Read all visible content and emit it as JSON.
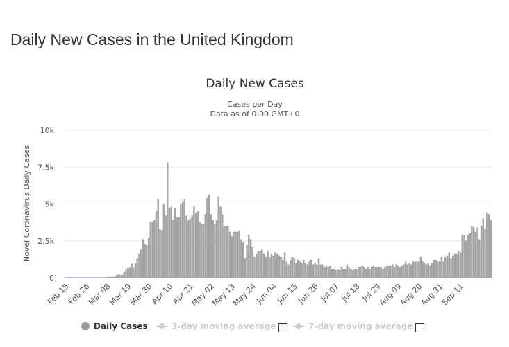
{
  "page": {
    "title": "Daily New Cases in the United Kingdom"
  },
  "colors": {
    "bar": "#a6a6a6",
    "bar_stroke": "#8a8a8a",
    "grid": "#e6e6e6",
    "axis_text": "#555555",
    "legend_hidden": "#cccccc"
  },
  "chart_data": {
    "type": "bar",
    "title": "Daily New Cases",
    "subtitle_line1": "Cases per Day",
    "subtitle_line2": "Data as of 0:00 GMT+0",
    "ylabel": "Novel Coronavirus Daily Cases",
    "xlabel": "",
    "ylim": [
      0,
      10000
    ],
    "y_ticks": [
      {
        "value": 0,
        "label": "0"
      },
      {
        "value": 2500,
        "label": "2.5k"
      },
      {
        "value": 5000,
        "label": "5k"
      },
      {
        "value": 7500,
        "label": "7.5k"
      },
      {
        "value": 10000,
        "label": "10k"
      }
    ],
    "x_ticks": [
      {
        "index": 0,
        "label": "Feb 15"
      },
      {
        "index": 11,
        "label": "Feb 26"
      },
      {
        "index": 22,
        "label": "Mar 08"
      },
      {
        "index": 33,
        "label": "Mar 19"
      },
      {
        "index": 44,
        "label": "Mar 30"
      },
      {
        "index": 55,
        "label": "Apr 10"
      },
      {
        "index": 66,
        "label": "Apr 21"
      },
      {
        "index": 77,
        "label": "May 02"
      },
      {
        "index": 88,
        "label": "May 13"
      },
      {
        "index": 99,
        "label": "May 24"
      },
      {
        "index": 110,
        "label": "Jun 04"
      },
      {
        "index": 121,
        "label": "Jun 15"
      },
      {
        "index": 132,
        "label": "Jun 26"
      },
      {
        "index": 143,
        "label": "Jul 07"
      },
      {
        "index": 154,
        "label": "Jul 18"
      },
      {
        "index": 165,
        "label": "Jul 29"
      },
      {
        "index": 176,
        "label": "Aug 09"
      },
      {
        "index": 187,
        "label": "Aug 20"
      },
      {
        "index": 198,
        "label": "Aug 31"
      },
      {
        "index": 209,
        "label": "Sep 11"
      }
    ],
    "grid": true,
    "legend_position": "bottom",
    "series": [
      {
        "name": "Daily Cases",
        "values": [
          0,
          0,
          0,
          0,
          0,
          0,
          0,
          0,
          0,
          0,
          0,
          0,
          0,
          0,
          0,
          0,
          0,
          0,
          0,
          0,
          0,
          0,
          10,
          20,
          30,
          50,
          60,
          150,
          230,
          170,
          200,
          410,
          530,
          650,
          680,
          940,
          660,
          1000,
          1300,
          1600,
          1900,
          2600,
          2300,
          2200,
          2700,
          3800,
          3800,
          3900,
          4500,
          5300,
          3300,
          3200,
          5000,
          4200,
          7800,
          4700,
          4800,
          3900,
          4700,
          4100,
          4100,
          5000,
          5100,
          5300,
          4200,
          3900,
          4000,
          4200,
          4800,
          4400,
          4500,
          3800,
          3600,
          3600,
          4300,
          5400,
          5600,
          4300,
          3900,
          3600,
          3900,
          5500,
          4800,
          4300,
          3500,
          3500,
          3500,
          3100,
          2800,
          3100,
          3100,
          3100,
          3200,
          2600,
          2400,
          1300,
          2200,
          2900,
          2600,
          2100,
          1400,
          1600,
          1800,
          1800,
          1900,
          1600,
          1400,
          1800,
          1400,
          1600,
          1500,
          1700,
          1600,
          1500,
          1400,
          1200,
          1700,
          1100,
          900,
          1200,
          1400,
          1300,
          1000,
          1200,
          1100,
          1000,
          1200,
          1000,
          900,
          1100,
          1200,
          900,
          1000,
          900,
          1300,
          900,
          900,
          700,
          800,
          700,
          800,
          600,
          600,
          500,
          600,
          500,
          700,
          600,
          600,
          900,
          700,
          600,
          500,
          600,
          600,
          700,
          700,
          800,
          700,
          600,
          700,
          600,
          700,
          800,
          700,
          700,
          700,
          700,
          600,
          700,
          800,
          800,
          800,
          900,
          700,
          900,
          800,
          700,
          800,
          900,
          1100,
          900,
          1000,
          900,
          1100,
          1100,
          1100,
          1100,
          1400,
          1100,
          1000,
          900,
          1000,
          800,
          1000,
          1200,
          1200,
          1100,
          1100,
          1400,
          1100,
          1400,
          1500,
          1700,
          1300,
          1500,
          1600,
          1600,
          1800,
          1700,
          2900,
          2900,
          2500,
          2900,
          3000,
          3500,
          3400,
          3100,
          3400,
          2600,
          3500,
          4000,
          3300,
          4400,
          4300,
          3900
        ]
      }
    ]
  },
  "legend": {
    "items": [
      {
        "label": "Daily Cases"
      },
      {
        "label": "3-day moving average"
      },
      {
        "label": "7-day moving average"
      }
    ]
  }
}
